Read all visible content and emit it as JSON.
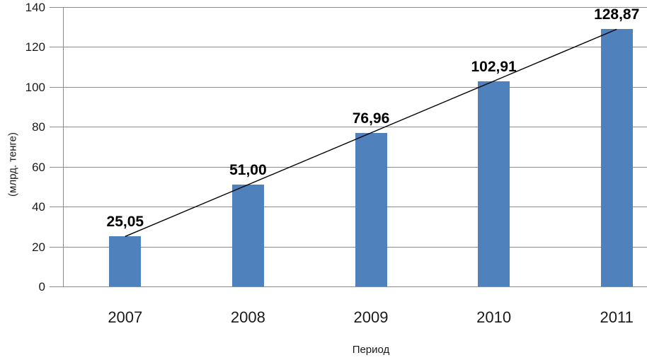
{
  "chart_data": {
    "type": "bar",
    "title": "",
    "categories": [
      "2007",
      "2008",
      "2009",
      "2010",
      "2011"
    ],
    "series": [
      {
        "name": "",
        "values": [
          25.05,
          51.0,
          76.96,
          102.91,
          128.87
        ]
      }
    ],
    "value_labels": [
      "25,05",
      "51,00",
      "76,96",
      "102,91",
      "128,87"
    ],
    "xlabel": "Период",
    "ylabel": "(млрд. тенге)",
    "ylim": [
      0,
      140
    ],
    "yticks": [
      0,
      20,
      40,
      60,
      80,
      100,
      120,
      140
    ],
    "grid": true,
    "legend_position": "none",
    "trend_line": {
      "type": "linear",
      "through": "bar-tops",
      "color": "#000000"
    },
    "colors": {
      "bar": "#4F81BD",
      "grid": "#8C8C8C",
      "axis": "#8C8C8C",
      "text": "#1a1a1a",
      "data_label": "#000000"
    }
  }
}
